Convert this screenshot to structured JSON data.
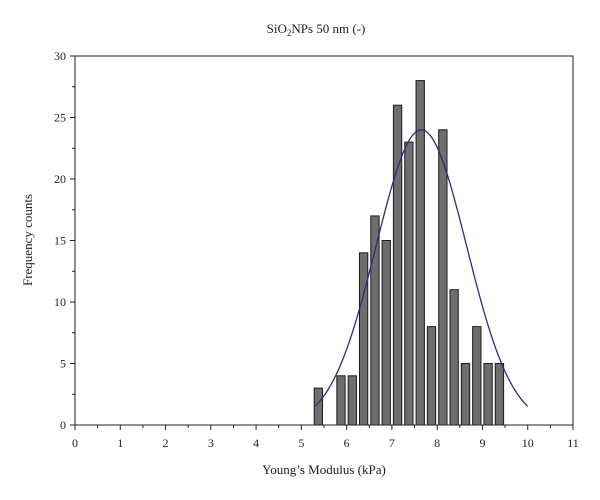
{
  "chart_data": {
    "type": "bar",
    "title_parts": {
      "base": "SiO",
      "subscript": "2",
      "rest": "NPs 50 nm (-)"
    },
    "xlabel": "Young’s Modulus (kPa)",
    "ylabel": "Frequency counts",
    "xlim": [
      0,
      11
    ],
    "ylim": [
      0,
      30
    ],
    "xticks": [
      0,
      1,
      2,
      3,
      4,
      5,
      6,
      7,
      8,
      9,
      10,
      11
    ],
    "yticks": [
      0,
      5,
      10,
      15,
      20,
      25,
      30
    ],
    "grid": false,
    "bin_width": 0.25,
    "colors": {
      "bar_fill": "#6e6e6e",
      "bar_stroke": "#1a1a1a",
      "fit_line": "#2b2b8c",
      "axis": "#222222"
    },
    "series": [
      {
        "bins": [
          {
            "x": 5.25,
            "value": 3
          },
          {
            "x": 5.75,
            "value": 4
          },
          {
            "x": 6.0,
            "value": 4
          },
          {
            "x": 6.25,
            "value": 14
          },
          {
            "x": 6.5,
            "value": 17
          },
          {
            "x": 6.75,
            "value": 15
          },
          {
            "x": 7.0,
            "value": 26
          },
          {
            "x": 7.25,
            "value": 23
          },
          {
            "x": 7.5,
            "value": 28
          },
          {
            "x": 7.75,
            "value": 8
          },
          {
            "x": 8.0,
            "value": 24
          },
          {
            "x": 8.25,
            "value": 11
          },
          {
            "x": 8.5,
            "value": 5
          },
          {
            "x": 8.75,
            "value": 8
          },
          {
            "x": 9.0,
            "value": 5
          },
          {
            "x": 9.25,
            "value": 5
          }
        ]
      }
    ],
    "fit": {
      "type": "gaussian",
      "amplitude": 24,
      "center": 7.65,
      "sigma": 1.0,
      "x_range": [
        5.3,
        10.0
      ]
    }
  }
}
